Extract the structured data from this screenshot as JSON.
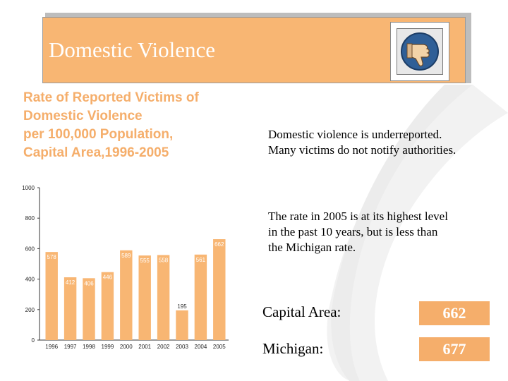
{
  "banner": {
    "title": "Domestic Violence",
    "thumb_icon": "thumbs-down-icon",
    "background_color": "#f8b673"
  },
  "heading": {
    "lines": [
      "Rate of Reported Victims of",
      "Domestic Violence",
      "per 100,000 Population,",
      "Capital Area,1996-2005"
    ],
    "color": "#f5ae6b"
  },
  "text": {
    "para1": [
      "Domestic violence is underreported.",
      "Many victims do not notify authorities."
    ],
    "para2": [
      "The rate in 2005 is at its highest level",
      "in the past 10 years, but is less than",
      "the Michigan rate."
    ]
  },
  "stats": [
    {
      "label": "Capital Area:",
      "value": "662"
    },
    {
      "label": "Michigan:",
      "value": "677"
    }
  ],
  "chart_data": {
    "type": "bar",
    "categories": [
      "1996",
      "1997",
      "1998",
      "1999",
      "2000",
      "2001",
      "2002",
      "2003",
      "2004",
      "2005"
    ],
    "values": [
      578,
      412,
      406,
      446,
      589,
      555,
      558,
      195,
      561,
      662
    ],
    "data_labels": [
      "578",
      "412",
      "406",
      "446",
      "589",
      "555",
      "558",
      "195",
      "561",
      "662"
    ],
    "yticks": [
      0,
      200,
      400,
      600,
      800,
      1000
    ],
    "ylim": [
      0,
      1000
    ],
    "grid": false,
    "bar_color": "#f8b673"
  }
}
